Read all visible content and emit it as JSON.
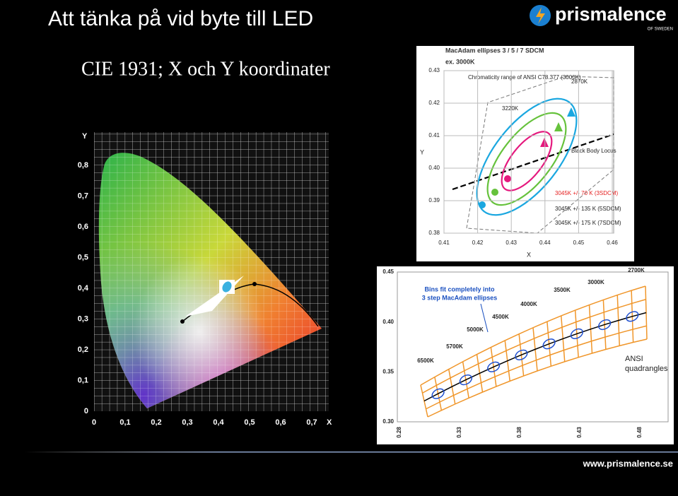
{
  "header": {
    "title": "Att tänka på vid byte till LED",
    "logo": "prismalence",
    "logo_sub": "OF SWEDEN"
  },
  "subtitle": "CIE 1931;  X och Y koordinater",
  "cie_diagram": {
    "y_label": "Y",
    "x_label": "X",
    "yticks": [
      "0",
      "0,1",
      "0,2",
      "0,3",
      "0,4",
      "0,5",
      "0,6",
      "0,7",
      "0,8"
    ],
    "xticks": [
      "0",
      "0,1",
      "0,2",
      "0,3",
      "0,4",
      "0,5",
      "0,6",
      "0,7"
    ]
  },
  "macadam_chart": {
    "title_lines": [
      "MacAdam ellipses 3  / 5 / 7 SDCM",
      "ex. 3000K"
    ],
    "range_label": "Chromaticity range of ANSI C78.377 (3000K)",
    "cct_labels": [
      "2870K",
      "3220K"
    ],
    "locus_label": "Black Body Locus",
    "ellipse_labels": [
      "3045K +/-  70  K (3SDCM)",
      "3045K +/- 135 K (5SDCM)",
      "3045K +/- 175 K (7SDCM)"
    ],
    "y_label": "Y",
    "x_label": "X",
    "yticks": [
      "0.43",
      "0.42",
      "0.41",
      "0.40",
      "0.39",
      "0.38"
    ],
    "xticks": [
      "0.41",
      "0.42",
      "0.43",
      "0.44",
      "0.45",
      "0.46"
    ]
  },
  "ansi_chart": {
    "note_lines": [
      "Bins fit completely into",
      "3 step MacAdam ellipses"
    ],
    "cct_labels": [
      "2700K",
      "3000K",
      "3500K",
      "4000K",
      "4500K",
      "5000K",
      "5700K",
      "6500K"
    ],
    "legend_lines": [
      "ANSI",
      "quadrangles"
    ],
    "yticks": [
      "0.45",
      "0.40",
      "0.35",
      "0.30"
    ],
    "xticks": [
      "0.28",
      "0.33",
      "0.38",
      "0.43",
      "0.48"
    ]
  },
  "footer": {
    "url": "www.prismalence.se"
  }
}
